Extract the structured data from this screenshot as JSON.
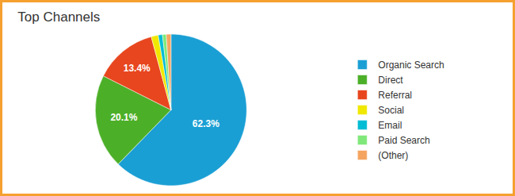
{
  "chart_data": {
    "type": "pie",
    "title": "Top Channels",
    "categories": [
      "Organic Search",
      "Direct",
      "Referral",
      "Social",
      "Email",
      "Paid Search",
      "(Other)"
    ],
    "values": [
      62.3,
      20.1,
      13.4,
      1.5,
      0.9,
      0.8,
      1.0
    ],
    "value_labels": [
      "62.3%",
      "20.1%",
      "13.4%",
      null,
      null,
      null,
      null
    ],
    "colors": [
      "#1a9fd4",
      "#4caf28",
      "#e8461e",
      "#f0e800",
      "#00bcd4",
      "#80e87a",
      "#f5a460"
    ],
    "data_labels": true,
    "legend": "right"
  }
}
